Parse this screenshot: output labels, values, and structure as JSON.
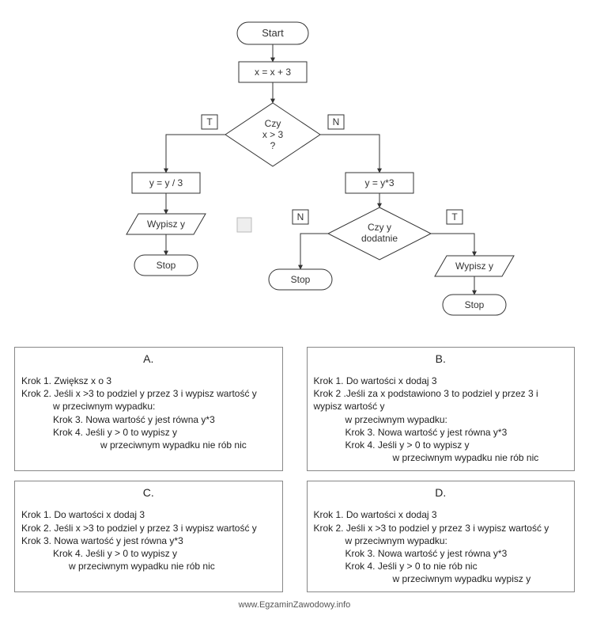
{
  "flowchart": {
    "stroke": "#333333",
    "fill": "#ffffff",
    "font": "13px Arial",
    "small_font": "12px Arial",
    "nodes": {
      "start": "Start",
      "assign1": "x = x + 3",
      "decision1_l1": "Czy",
      "decision1_l2": "x > 3",
      "decision1_l3": "?",
      "T": "T",
      "N": "N",
      "left_assign": "y = y / 3",
      "right_assign": "y = y*3",
      "print_y": "Wypisz y",
      "stop": "Stop",
      "decision2_l1": "Czy y",
      "decision2_l2": "dodatnie"
    }
  },
  "options": {
    "A": {
      "label": "A.",
      "lines": [
        {
          "cls": "",
          "t": "Krok 1.  Zwiększ x o 3"
        },
        {
          "cls": "",
          "t": "Krok 2. Jeśli x >3 to podziel y przez 3 i wypisz wartość y"
        },
        {
          "cls": "indent1",
          "t": "w przeciwnym wypadku:"
        },
        {
          "cls": "indent1",
          "t": "Krok 3. Nowa wartość y jest równa y*3"
        },
        {
          "cls": "indent1",
          "t": "Krok 4. Jeśli y > 0 to wypisz y"
        },
        {
          "cls": "indent3",
          "t": "w przeciwnym wypadku nie rób nic"
        }
      ]
    },
    "B": {
      "label": "B.",
      "lines": [
        {
          "cls": "",
          "t": "Krok 1. Do wartości x dodaj 3"
        },
        {
          "cls": "",
          "t": "Krok 2 .Jeśli za x podstawiono 3 to podziel y przez 3 i wypisz wartość y"
        },
        {
          "cls": "indent1",
          "t": "w przeciwnym wypadku:"
        },
        {
          "cls": "indent1",
          "t": "Krok 3. Nowa wartość y jest równa y*3"
        },
        {
          "cls": "indent1",
          "t": "Krok 4. Jeśli y > 0 to wypisz y"
        },
        {
          "cls": "indent3",
          "t": "w przeciwnym wypadku nie rób nic"
        }
      ]
    },
    "C": {
      "label": "C.",
      "lines": [
        {
          "cls": "",
          "t": "Krok 1. Do wartości x dodaj 3"
        },
        {
          "cls": "",
          "t": "Krok 2. Jeśli x >3 to podziel y przez 3 i wypisz wartość y"
        },
        {
          "cls": "",
          "t": "Krok 3. Nowa wartość y jest równa y*3"
        },
        {
          "cls": "indent1",
          "t": "Krok 4. Jeśli y > 0 to wypisz y"
        },
        {
          "cls": "indent2",
          "t": "w przeciwnym wypadku nie rób nic"
        }
      ]
    },
    "D": {
      "label": "D.",
      "lines": [
        {
          "cls": "",
          "t": "Krok 1. Do wartości x dodaj 3"
        },
        {
          "cls": "",
          "t": "Krok 2. Jeśli x >3 to podziel y przez 3 i wypisz wartość y"
        },
        {
          "cls": "indent1",
          "t": "w przeciwnym wypadku:"
        },
        {
          "cls": "indent1",
          "t": "Krok 3. Nowa wartość y jest równa y*3"
        },
        {
          "cls": "indent1",
          "t": "Krok 4. Jeśli y > 0 to nie rób nic"
        },
        {
          "cls": "indent3",
          "t": "w przeciwnym wypadku wypisz y"
        }
      ]
    }
  },
  "footer": "www.EgzaminZawodowy.info"
}
